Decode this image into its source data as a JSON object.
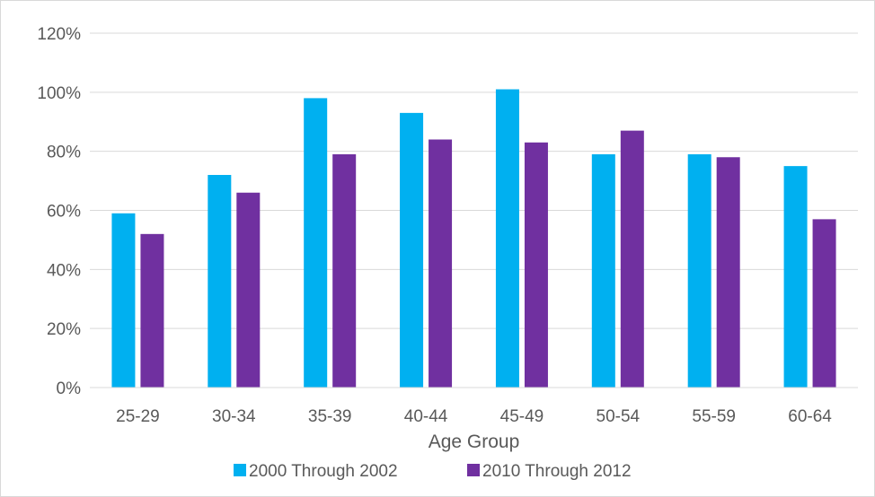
{
  "chart_data": {
    "type": "bar",
    "title": "",
    "xlabel": "Age Group",
    "ylabel": "",
    "categories": [
      "25-29",
      "30-34",
      "35-39",
      "40-44",
      "45-49",
      "50-54",
      "55-59",
      "60-64"
    ],
    "series": [
      {
        "name": "2000 Through 2002",
        "values": [
          59,
          72,
          98,
          93,
          101,
          79,
          79,
          75
        ],
        "color": "#00b0f0"
      },
      {
        "name": "2010 Through 2012",
        "values": [
          52,
          66,
          79,
          84,
          83,
          87,
          78,
          57
        ],
        "color": "#7030a0"
      }
    ],
    "ylim": [
      0,
      120
    ],
    "yticks": [
      0,
      20,
      40,
      60,
      80,
      100,
      120
    ],
    "ytick_labels": [
      "0%",
      "20%",
      "40%",
      "60%",
      "80%",
      "100%",
      "120%"
    ],
    "grid": true,
    "legend_position": "bottom",
    "grid_color": "#d9d9d9"
  }
}
